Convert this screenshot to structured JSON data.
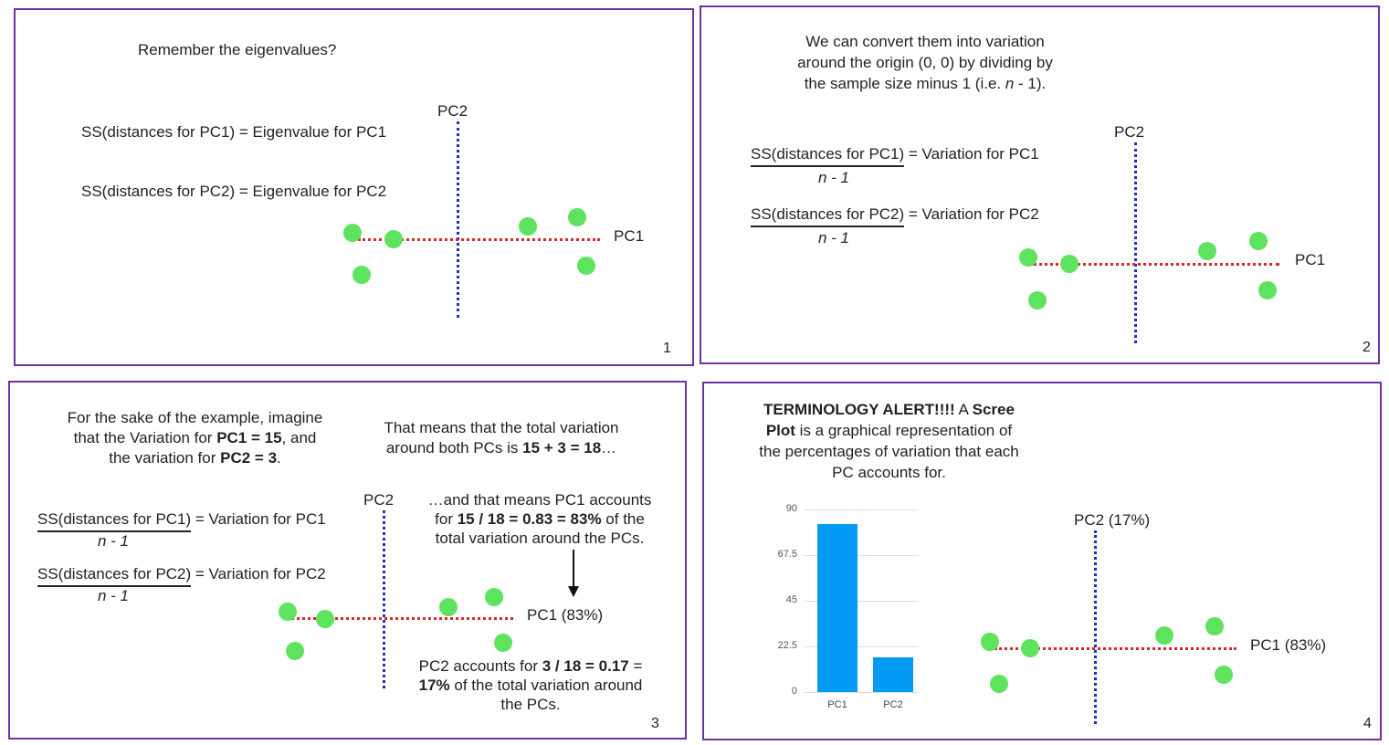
{
  "colors": {
    "border": "#7030a0",
    "pc1_axis": "#d62828",
    "pc2_axis": "#1f2ec8",
    "dots": "#5ee35e",
    "bars": "#039bf3"
  },
  "axis_labels": {
    "pc1": "PC1",
    "pc2": "PC2",
    "pc1_pct": "PC1 (83%)",
    "pc2_pct": "PC2 (17%)"
  },
  "panel1": {
    "number": "1",
    "heading": "Remember the eigenvalues?",
    "eq1": "SS(distances for PC1) = Eigenvalue for PC1",
    "eq2": "SS(distances for PC2) = Eigenvalue for PC2"
  },
  "panel2": {
    "number": "2",
    "line1": "We can convert them into variation",
    "line2": "around the origin (0, 0) by dividing by",
    "line3a": "the sample size minus 1 (i.e. ",
    "line3n": "n",
    "line3b": " - 1).",
    "frac1_num": "SS(distances for PC1)",
    "frac1_rhs": " = Variation for PC1",
    "frac2_num": "SS(distances for PC2)",
    "frac2_rhs": " = Variation for PC2",
    "den": "n - 1"
  },
  "panel3": {
    "number": "3",
    "intro1": "For the sake of the example, imagine",
    "intro2a": "that the Variation for ",
    "intro2b": "PC1 = 15",
    "intro2c": ", and",
    "intro3a": "the variation for ",
    "intro3b": "PC2 = 3",
    "intro3c": ".",
    "total1": "That means that the total variation",
    "total2a": "around both PCs is ",
    "total2b": "15 + 3 = 18",
    "total2c": "…",
    "pc1acc1": "…and that means PC1 accounts",
    "pc1acc2a": "for ",
    "pc1acc2b": "15 / 18 = 0.83 = 83%",
    "pc1acc2c": " of the",
    "pc1acc3": "total variation around the PCs.",
    "pc2acc1a": "PC2 accounts for ",
    "pc2acc1b": "3 / 18 = 0.17",
    "pc2acc1c": " =",
    "pc2acc2a": "17%",
    "pc2acc2b": " of the total variation around",
    "pc2acc3": "the PCs.",
    "frac1_num": "SS(distances for PC1)",
    "frac1_rhs": " = Variation for PC1",
    "frac2_num": "SS(distances for PC2)",
    "frac2_rhs": " = Variation for PC2",
    "den": "n - 1"
  },
  "panel4": {
    "number": "4",
    "l1a": "TERMINOLOGY ALERT!!!!",
    "l1b": " A ",
    "l1c": "Scree",
    "l2a": "Plot",
    "l2b": " is a graphical representation of",
    "l3": "the percentages of variation that each",
    "l4": "PC accounts for."
  },
  "chart_data": {
    "type": "bar",
    "categories": [
      "PC1",
      "PC2"
    ],
    "values": [
      83,
      17
    ],
    "ylim": [
      0,
      90
    ],
    "yticks": [
      "0",
      "22.5",
      "45",
      "67.5",
      "90"
    ],
    "grid": true
  }
}
